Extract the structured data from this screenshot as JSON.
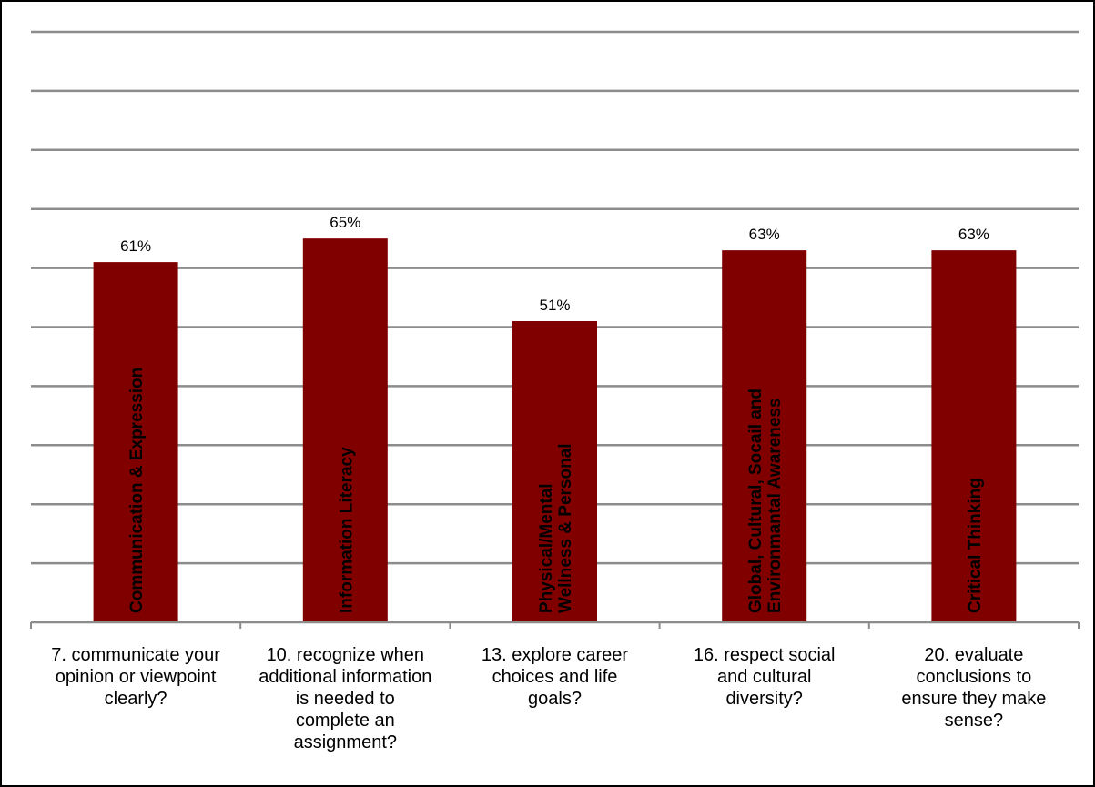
{
  "chart_data": {
    "type": "bar",
    "categories": [
      "7. communicate your\nopinion or viewpoint\nclearly?",
      "10. recognize when\nadditional information\nis needed to\ncomplete an\nassignment?",
      "13. explore career\nchoices and life\ngoals?",
      "16. respect social\nand cultural\ndiversity?",
      "20. evaluate\nconclusions to\nensure they make\nsense?"
    ],
    "bar_labels": [
      [
        "Communication & Expression"
      ],
      [
        "Information Literacy"
      ],
      [
        "Physical/Mental",
        "Wellness & Personal"
      ],
      [
        "Global, Cultural, Socail and",
        "Environmantal Awareness"
      ],
      [
        "Critical Thinking"
      ]
    ],
    "values": [
      61,
      65,
      51,
      63,
      63
    ],
    "value_labels": [
      "61%",
      "65%",
      "51%",
      "63%",
      "63%"
    ],
    "ylim": [
      0,
      100
    ],
    "gridline_step": 10,
    "grid": true,
    "bar_color": "#800000",
    "grid_color": "#8c8c8c",
    "title": "",
    "xlabel": "",
    "ylabel": ""
  }
}
